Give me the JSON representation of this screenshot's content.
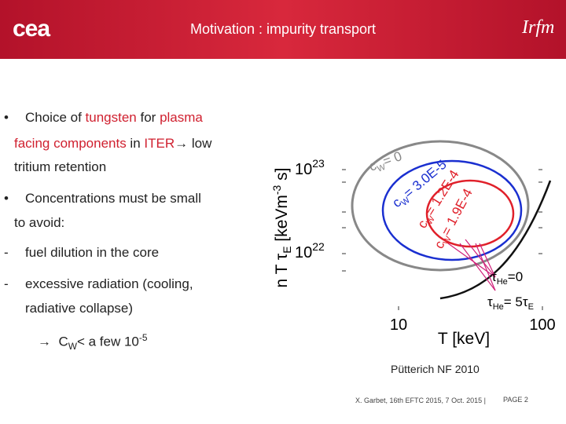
{
  "header": {
    "title": "Motivation : impurity transport",
    "logo_left": "cea",
    "logo_right": "Irfm"
  },
  "bullets": [
    {
      "marker": "•",
      "lines": [
        [
          {
            "text": "Choice of "
          },
          {
            "text": "tungsten",
            "hl": true
          },
          {
            "text": " for "
          },
          {
            "text": "plasma",
            "hl": true
          }
        ],
        [
          {
            "text": "facing components",
            "hl": true
          },
          {
            "text": " in "
          },
          {
            "text": "ITER",
            "hl": true
          },
          {
            "text": "→ low"
          }
        ],
        [
          {
            "text": "tritium retention"
          }
        ]
      ]
    },
    {
      "marker": "•",
      "lines": [
        [
          {
            "text": "Concentrations must be small"
          }
        ],
        [
          {
            "text": "to avoid:"
          }
        ]
      ]
    },
    {
      "marker": "-",
      "lines": [
        [
          {
            "text": "fuel dilution in the core"
          }
        ]
      ]
    },
    {
      "marker": "-",
      "lines": [
        [
          {
            "text": "excessive radiation (cooling,"
          }
        ],
        [
          {
            "text": "radiative collapse)"
          }
        ]
      ]
    }
  ],
  "conclusion": {
    "arrow": "→",
    "c": "C",
    "sub": "W",
    "text": "< a few 10",
    "exp": "-5"
  },
  "figure": {
    "y_label": {
      "a": "n T ",
      "tau": "τ",
      "sub": "E",
      "b": " [keVm",
      "exp": "-3",
      "c": " s]"
    },
    "y_ticks": [
      {
        "base": "10",
        "exp": "23"
      },
      {
        "base": "10",
        "exp": "22"
      }
    ],
    "x_ticks": [
      "10",
      "100"
    ],
    "x_label": "T [keV]",
    "contours": [
      {
        "c": "c",
        "sub": "W",
        "rest": "= 0"
      },
      {
        "c": "c",
        "sub": "W",
        "rest": "= 3.0E-5"
      },
      {
        "c": "c",
        "sub": "W",
        "rest": "= 1.2E-4"
      },
      {
        "c": "c",
        "sub": "W",
        "rest": "= 1.9E-4"
      }
    ],
    "tau_labels": [
      {
        "t": "τ",
        "sub": "He",
        "rest": "=0"
      },
      {
        "t": "τ",
        "sub": "He",
        "rest": "= 5τ",
        "sub2": "E"
      }
    ]
  },
  "caption": "Pütterich NF 2010",
  "footer": {
    "credit": "X. Garbet, 16th EFTC 2015, 7 Oct. 2015 |",
    "page": "PAGE 2"
  }
}
